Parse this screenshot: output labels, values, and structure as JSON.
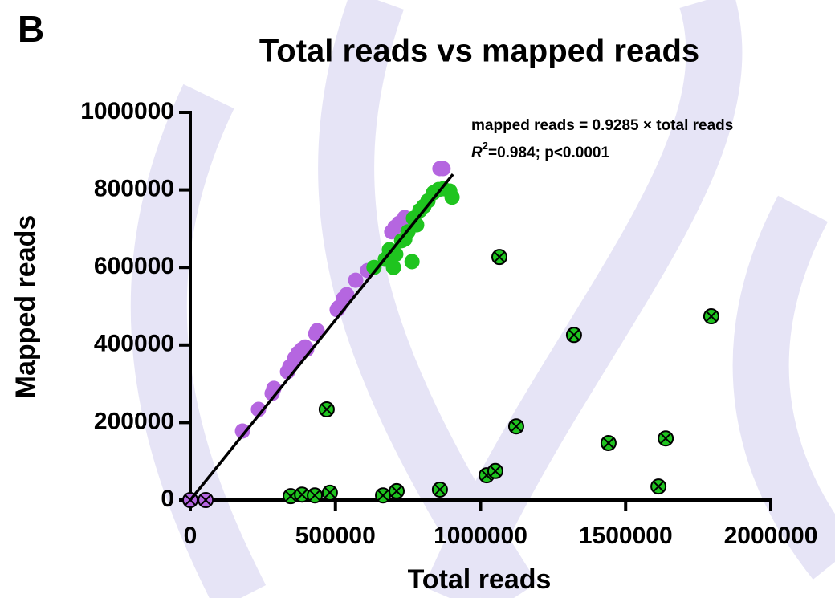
{
  "chart_data": {
    "type": "scatter",
    "panel_label": "B",
    "title": "Total reads vs mapped reads",
    "x_label": "Total reads",
    "y_label": "Mapped reads",
    "annotations": [
      "mapped reads = 0.9285 × total reads",
      {
        "italic": "R",
        "superscript": "2",
        "text": "=0.984; p<0.0001"
      }
    ],
    "xlim": [
      0,
      2000000
    ],
    "ylim": [
      0,
      1000000
    ],
    "xticks": [
      0,
      500000,
      1000000,
      1500000,
      2000000
    ],
    "yticks": [
      0,
      200000,
      400000,
      600000,
      800000,
      1000000
    ],
    "fit_line": {
      "slope": 0.9285,
      "xlim": [
        0,
        905000
      ],
      "color": "#000000"
    },
    "series": [
      {
        "color": "#b566e0",
        "marker": "circle",
        "x": [
          180000,
          235000,
          282000,
          288000,
          335000,
          343000,
          360000,
          371000,
          385000,
          396000,
          401000,
          432000,
          437000,
          506000,
          512000,
          528000,
          539000,
          570000,
          611000,
          694000,
          705000,
          719000,
          739000,
          860000,
          871000
        ],
        "y": [
          178000,
          234000,
          275000,
          288000,
          331000,
          344000,
          366000,
          379000,
          389000,
          395000,
          389000,
          429000,
          437000,
          491000,
          497000,
          520000,
          530000,
          567000,
          592000,
          692000,
          704000,
          714000,
          729000,
          855000,
          855000
        ]
      },
      {
        "color": "#b566e0",
        "marker": "cross",
        "x": [
          0,
          53000
        ],
        "y": [
          0,
          0
        ]
      },
      {
        "color": "#1fc41f",
        "marker": "circle",
        "x": [
          633000,
          672000,
          686000,
          700000,
          708000,
          728000,
          739000,
          750000,
          764000,
          769000,
          780000,
          791000,
          805000,
          819000,
          838000,
          855000,
          871000,
          894000,
          902000
        ],
        "y": [
          600000,
          621000,
          646000,
          600000,
          634000,
          669000,
          673000,
          692000,
          615000,
          727000,
          710000,
          747000,
          758000,
          772000,
          793000,
          801000,
          803000,
          797000,
          781000
        ]
      },
      {
        "color": "#1fc41f",
        "marker": "cross",
        "x": [
          346000,
          385000,
          429000,
          481000,
          664000,
          711000,
          860000,
          470000,
          1021000,
          1051000,
          1123000,
          1065000,
          1322000,
          1441000,
          1613000,
          1638000,
          1795000
        ],
        "y": [
          10000,
          14000,
          12000,
          19000,
          12000,
          23000,
          27000,
          234000,
          64000,
          75000,
          190000,
          627000,
          426000,
          147000,
          35000,
          159000,
          474000
        ]
      }
    ]
  }
}
